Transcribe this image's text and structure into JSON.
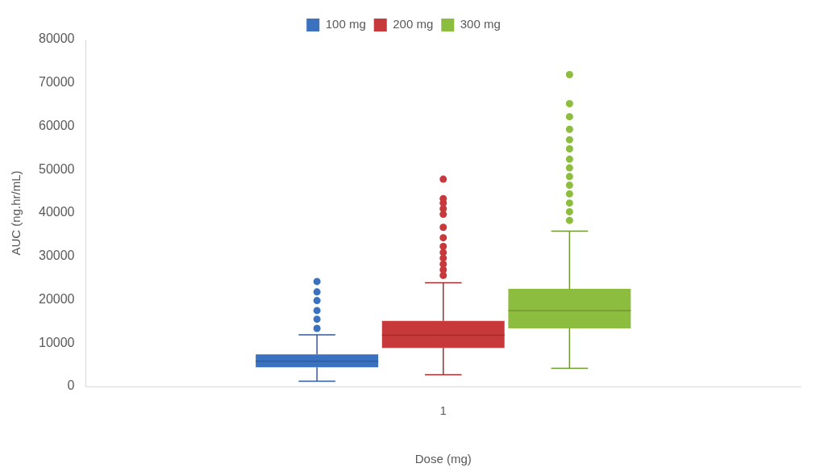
{
  "chart_data": {
    "type": "box",
    "categories": [
      "1"
    ],
    "xlabel": "Dose (mg)",
    "ylabel": "AUC (ng.hr/mL)",
    "ylim": [
      0,
      80000
    ],
    "yticks": [
      0,
      10000,
      20000,
      30000,
      40000,
      50000,
      60000,
      70000,
      80000
    ],
    "grid": false,
    "legend": "top",
    "marker": "circle",
    "series": [
      {
        "name": "100 mg",
        "color": "#3b72c0",
        "boxes": [
          {
            "low": 1200,
            "q1": 4400,
            "median": 5800,
            "q3": 7400,
            "high": 11900,
            "outliers": [
              13400,
              15500,
              17500,
              19800,
              21800,
              24200
            ]
          }
        ]
      },
      {
        "name": "200 mg",
        "color": "#c8393b",
        "boxes": [
          {
            "low": 2700,
            "q1": 8900,
            "median": 11800,
            "q3": 15100,
            "high": 23900,
            "outliers": [
              25600,
              26900,
              28200,
              29600,
              30900,
              32300,
              34300,
              36700,
              39700,
              41000,
              42300,
              43300,
              47800
            ]
          }
        ]
      },
      {
        "name": "300 mg",
        "color": "#8dbd3e",
        "boxes": [
          {
            "low": 4200,
            "q1": 13400,
            "median": 17500,
            "q3": 22500,
            "high": 35800,
            "outliers": [
              38300,
              40300,
              42300,
              44400,
              46400,
              48400,
              50400,
              52400,
              54800,
              56900,
              59300,
              62200,
              65200,
              71900
            ]
          }
        ]
      }
    ]
  }
}
